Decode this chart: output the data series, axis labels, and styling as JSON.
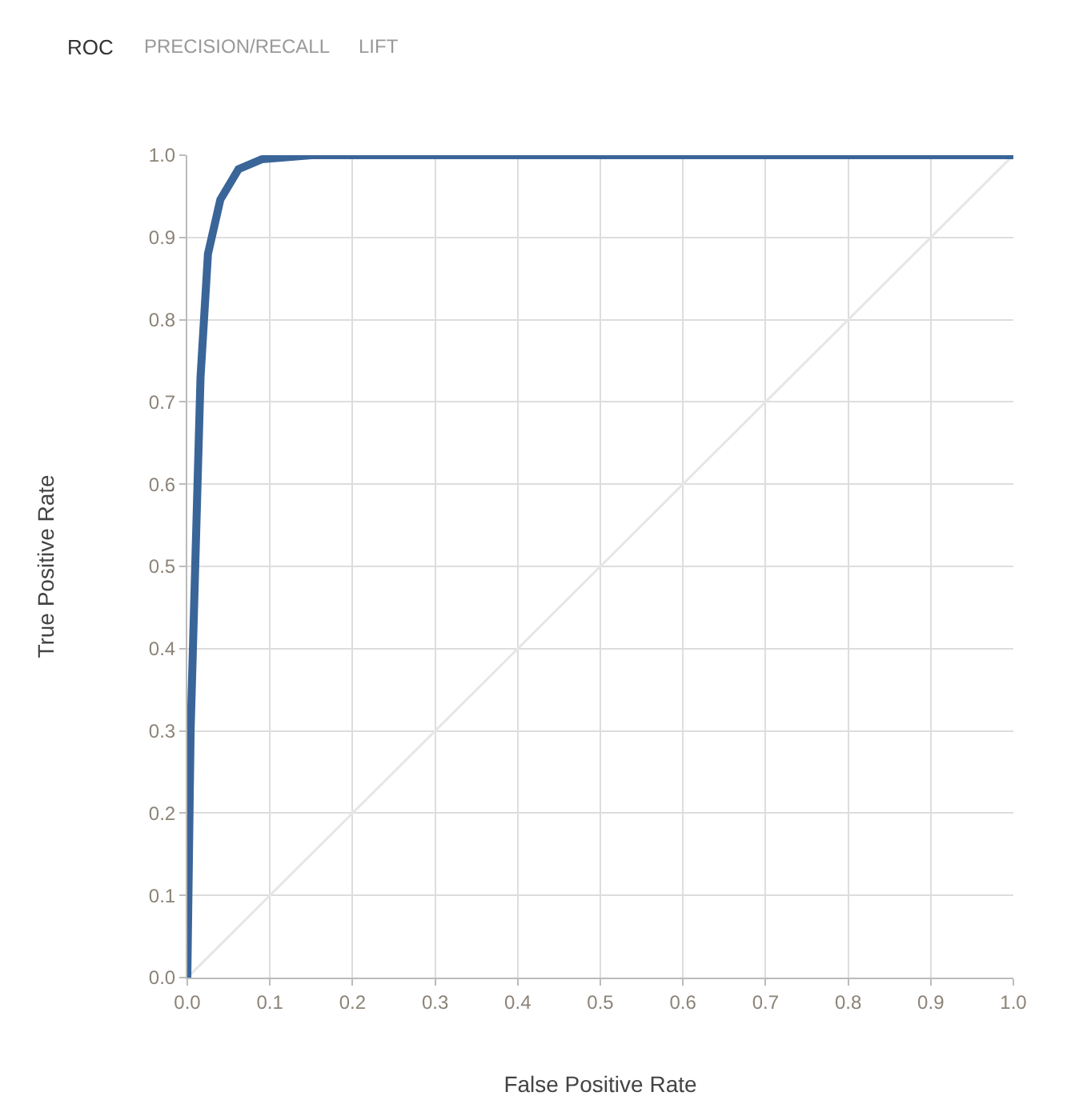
{
  "chart_data": {
    "type": "line",
    "title": "ROC",
    "annotations": [
      "PRECISION/RECALL",
      "LIFT"
    ],
    "xlabel": "False Positive Rate",
    "ylabel": "True Positive Rate",
    "series": [
      {
        "color": "#e6e6e6",
        "x": [
          0,
          1
        ],
        "values": [
          0,
          1
        ]
      },
      {
        "color": "#3a6599",
        "x": [
          0,
          0.004,
          0.016,
          0.025,
          0.04,
          0.062,
          0.09,
          0.15,
          1
        ],
        "values": [
          0,
          0.3,
          0.73,
          0.88,
          0.946,
          0.983,
          0.995,
          1,
          1
        ]
      }
    ],
    "xlim": [
      0,
      1
    ],
    "ylim": [
      0,
      1
    ],
    "xticks": [
      {
        "value": 0,
        "label": "0.0"
      },
      0.1,
      0.2,
      0.3,
      0.4,
      0.5,
      0.6,
      0.7,
      0.8,
      0.9,
      {
        "value": 1,
        "label": "1.0"
      }
    ],
    "yticks": [
      {
        "value": 0,
        "label": "0.0"
      },
      0.1,
      0.2,
      0.3,
      0.4,
      0.5,
      0.6,
      0.7,
      0.8,
      0.9,
      {
        "value": 1,
        "label": "1.0"
      }
    ],
    "grid": true,
    "marker": "none",
    "line_style": "solid"
  }
}
